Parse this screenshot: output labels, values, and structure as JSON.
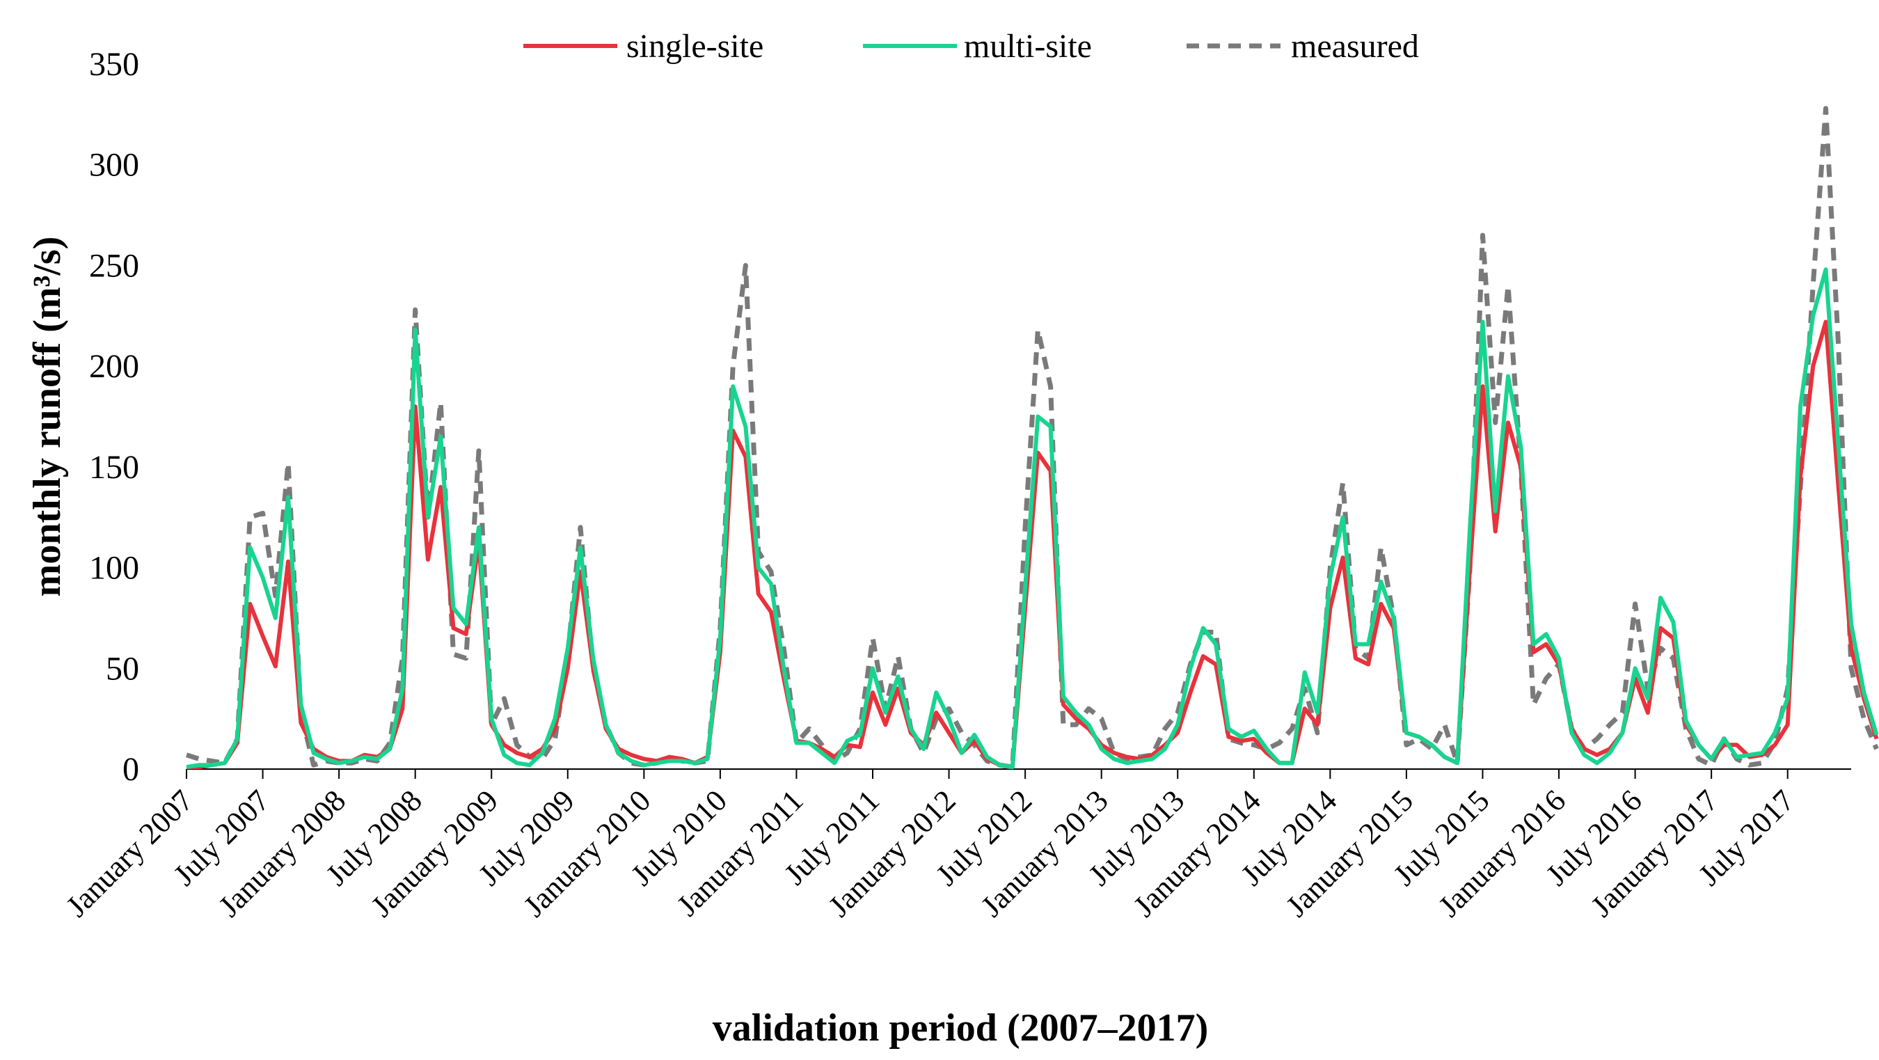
{
  "chart_data": {
    "type": "line",
    "title": "",
    "xlabel": "validation period (2007–2017)",
    "ylabel": "monthly runoff (m³/s)",
    "ylim": [
      0,
      350
    ],
    "yticks": [
      0,
      50,
      100,
      150,
      200,
      250,
      300,
      350
    ],
    "grid": false,
    "legend_position": "top-center",
    "x_tick_labels": [
      "January 2007",
      "July 2007",
      "January 2008",
      "July 2008",
      "January 2009",
      "July 2009",
      "January 2010",
      "July 2010",
      "January 2011",
      "July 2011",
      "January 2012",
      "July 2012",
      "January 2013",
      "July 2013",
      "January 2014",
      "July 2014",
      "January 2015",
      "July 2015",
      "January 2016",
      "July 2016",
      "January 2017",
      "July 2017"
    ],
    "x_tick_indices": [
      0,
      6,
      12,
      18,
      24,
      30,
      36,
      42,
      48,
      54,
      60,
      66,
      72,
      78,
      84,
      90,
      96,
      102,
      108,
      114,
      120,
      126
    ],
    "months": 132,
    "series": [
      {
        "name": "single-site",
        "color": "#e8323c",
        "dash": "solid",
        "values": [
          1,
          1,
          2,
          3,
          13,
          82,
          66,
          51,
          103,
          23,
          10,
          6,
          4,
          4,
          7,
          6,
          10,
          30,
          180,
          104,
          140,
          70,
          67,
          113,
          22,
          12,
          8,
          6,
          10,
          20,
          50,
          98,
          50,
          20,
          10,
          7,
          5,
          4,
          6,
          5,
          3,
          6,
          58,
          168,
          155,
          87,
          78,
          45,
          14,
          13,
          10,
          6,
          12,
          11,
          38,
          22,
          40,
          18,
          12,
          28,
          18,
          8,
          14,
          5,
          2,
          1,
          80,
          157,
          148,
          32,
          25,
          20,
          12,
          8,
          6,
          5,
          7,
          12,
          18,
          38,
          56,
          52,
          16,
          14,
          15,
          8,
          3,
          3,
          30,
          22,
          80,
          105,
          55,
          52,
          82,
          70,
          18,
          16,
          12,
          6,
          3,
          100,
          190,
          118,
          172,
          150,
          58,
          62,
          52,
          20,
          10,
          7,
          10,
          18,
          45,
          28,
          70,
          65,
          22,
          12,
          5,
          12,
          12,
          6,
          7,
          12,
          22,
          145,
          200,
          222,
          140,
          60,
          35,
          15
        ]
      },
      {
        "name": "multi-site",
        "color": "#18d490",
        "dash": "solid",
        "values": [
          1,
          2,
          2,
          3,
          15,
          110,
          95,
          75,
          135,
          32,
          8,
          5,
          3,
          4,
          6,
          5,
          10,
          40,
          218,
          125,
          165,
          80,
          72,
          120,
          25,
          7,
          3,
          2,
          8,
          25,
          60,
          110,
          55,
          22,
          8,
          4,
          2,
          3,
          4,
          4,
          3,
          5,
          65,
          190,
          170,
          100,
          92,
          50,
          13,
          13,
          8,
          3,
          14,
          17,
          50,
          28,
          46,
          20,
          10,
          38,
          25,
          8,
          17,
          6,
          2,
          1,
          90,
          175,
          170,
          36,
          28,
          22,
          10,
          5,
          3,
          4,
          5,
          10,
          22,
          50,
          70,
          62,
          20,
          16,
          19,
          10,
          3,
          3,
          48,
          28,
          95,
          125,
          62,
          62,
          93,
          75,
          18,
          16,
          12,
          6,
          3,
          120,
          222,
          128,
          195,
          160,
          62,
          67,
          55,
          18,
          7,
          3,
          8,
          18,
          50,
          35,
          85,
          73,
          24,
          12,
          5,
          15,
          6,
          7,
          8,
          18,
          35,
          180,
          225,
          248,
          160,
          72,
          38,
          17
        ]
      },
      {
        "name": "measured",
        "color": "#7a7a7a",
        "dash": "dashed",
        "values": [
          7,
          5,
          4,
          3,
          15,
          125,
          127,
          86,
          152,
          28,
          2,
          4,
          3,
          3,
          5,
          4,
          13,
          55,
          228,
          125,
          182,
          57,
          55,
          158,
          22,
          35,
          12,
          6,
          5,
          15,
          57,
          120,
          50,
          22,
          8,
          3,
          2,
          3,
          5,
          4,
          3,
          4,
          70,
          200,
          250,
          108,
          98,
          60,
          13,
          20,
          12,
          4,
          8,
          20,
          65,
          30,
          56,
          20,
          8,
          25,
          30,
          18,
          12,
          4,
          2,
          1,
          120,
          218,
          190,
          22,
          22,
          30,
          25,
          8,
          5,
          6,
          7,
          20,
          28,
          52,
          68,
          68,
          15,
          13,
          12,
          10,
          13,
          20,
          40,
          18,
          100,
          142,
          60,
          55,
          110,
          75,
          12,
          15,
          10,
          22,
          3,
          100,
          265,
          172,
          240,
          150,
          32,
          45,
          52,
          20,
          10,
          15,
          22,
          28,
          82,
          40,
          60,
          55,
          20,
          5,
          2,
          15,
          5,
          2,
          3,
          13,
          40,
          140,
          240,
          328,
          210,
          50,
          25,
          10
        ]
      }
    ]
  }
}
